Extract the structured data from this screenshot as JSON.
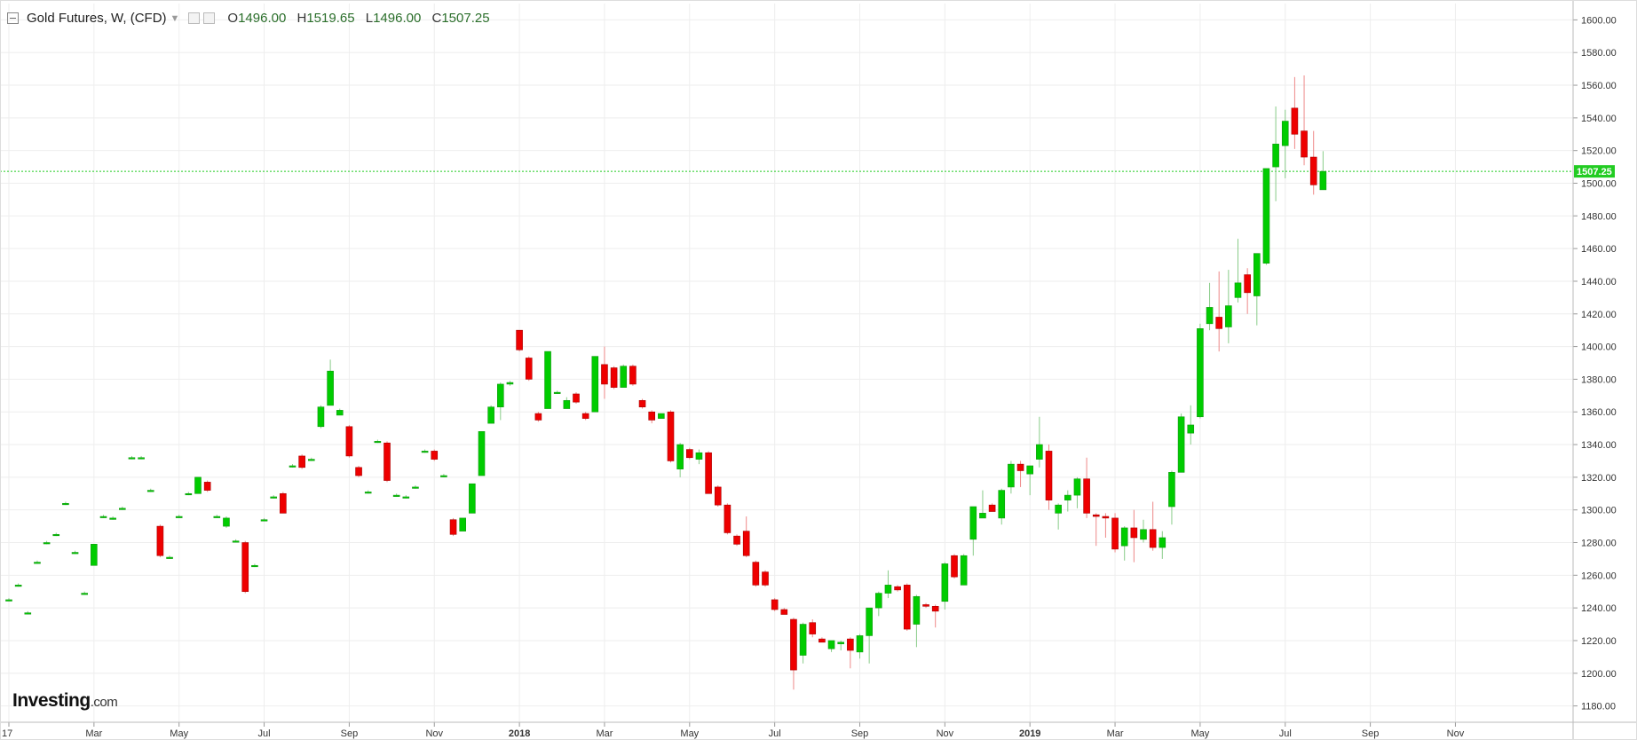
{
  "legend": {
    "title": "Gold Futures, W, (CFD)",
    "o_label": "O",
    "o_value": "1496.00",
    "h_label": "H",
    "h_value": "1519.65",
    "l_label": "L",
    "l_value": "1496.00",
    "c_label": "C",
    "c_value": "1507.25"
  },
  "brand": {
    "name": "Investing",
    "domain": ".com"
  },
  "colors": {
    "up": "#00cc00",
    "down": "#ee0000",
    "grid": "#eeeeee",
    "last_price": "#22cc22",
    "axis_text": "#333333"
  },
  "chart_data": {
    "type": "candlestick",
    "title": "Gold Futures, W, (CFD)",
    "ylim": [
      1170,
      1610
    ],
    "y_ticks": [
      "1180.00",
      "1200.00",
      "1220.00",
      "1240.00",
      "1260.00",
      "1280.00",
      "1300.00",
      "1320.00",
      "1340.00",
      "1360.00",
      "1380.00",
      "1400.00",
      "1420.00",
      "1440.00",
      "1460.00",
      "1480.00",
      "1500.00",
      "1520.00",
      "1540.00",
      "1560.00",
      "1580.00",
      "1600.00"
    ],
    "x_labels": [
      {
        "label": "17",
        "week": 0
      },
      {
        "label": "Mar",
        "week": 9
      },
      {
        "label": "May",
        "week": 18
      },
      {
        "label": "Jul",
        "week": 27
      },
      {
        "label": "Sep",
        "week": 36
      },
      {
        "label": "Nov",
        "week": 45
      },
      {
        "label": "2018",
        "week": 54
      },
      {
        "label": "Mar",
        "week": 63
      },
      {
        "label": "May",
        "week": 72
      },
      {
        "label": "Jul",
        "week": 81
      },
      {
        "label": "Sep",
        "week": 90
      },
      {
        "label": "Nov",
        "week": 99
      },
      {
        "label": "2019",
        "week": 108
      },
      {
        "label": "Mar",
        "week": 117
      },
      {
        "label": "May",
        "week": 126
      },
      {
        "label": "Jul",
        "week": 135
      },
      {
        "label": "Sep",
        "week": 144
      },
      {
        "label": "Nov",
        "week": 153
      }
    ],
    "last_price": 1507.25,
    "last_price_label": "1507.25",
    "candles": [
      {
        "o": 1245,
        "h": 1246,
        "l": 1244,
        "c": 1245
      },
      {
        "o": 1254,
        "h": 1255,
        "l": 1253,
        "c": 1254
      },
      {
        "o": 1237,
        "h": 1238,
        "l": 1236,
        "c": 1237
      },
      {
        "o": 1268,
        "h": 1269,
        "l": 1267,
        "c": 1268
      },
      {
        "o": 1280,
        "h": 1281,
        "l": 1279,
        "c": 1280
      },
      {
        "o": 1285,
        "h": 1286,
        "l": 1284,
        "c": 1285
      },
      {
        "o": 1304,
        "h": 1305,
        "l": 1303,
        "c": 1304
      },
      {
        "o": 1274,
        "h": 1275,
        "l": 1273,
        "c": 1274
      },
      {
        "o": 1249,
        "h": 1250,
        "l": 1248,
        "c": 1249
      },
      {
        "o": 1266,
        "h": 1279,
        "l": 1266,
        "c": 1279
      },
      {
        "o": 1296,
        "h": 1297,
        "l": 1295,
        "c": 1296
      },
      {
        "o": 1295,
        "h": 1296,
        "l": 1294,
        "c": 1295
      },
      {
        "o": 1301,
        "h": 1302,
        "l": 1300,
        "c": 1301
      },
      {
        "o": 1332,
        "h": 1333,
        "l": 1331,
        "c": 1332
      },
      {
        "o": 1332,
        "h": 1333,
        "l": 1331,
        "c": 1332
      },
      {
        "o": 1312,
        "h": 1313,
        "l": 1311,
        "c": 1312
      },
      {
        "o": 1290,
        "h": 1291,
        "l": 1271,
        "c": 1272
      },
      {
        "o": 1271,
        "h": 1272,
        "l": 1270,
        "c": 1271
      },
      {
        "o": 1296,
        "h": 1297,
        "l": 1295,
        "c": 1296
      },
      {
        "o": 1310,
        "h": 1311,
        "l": 1309,
        "c": 1310
      },
      {
        "o": 1310,
        "h": 1320,
        "l": 1310,
        "c": 1320
      },
      {
        "o": 1317,
        "h": 1318,
        "l": 1311,
        "c": 1312
      },
      {
        "o": 1296,
        "h": 1297,
        "l": 1295,
        "c": 1296
      },
      {
        "o": 1290,
        "h": 1296,
        "l": 1289,
        "c": 1295
      },
      {
        "o": 1281,
        "h": 1282,
        "l": 1280,
        "c": 1281
      },
      {
        "o": 1280,
        "h": 1281,
        "l": 1249,
        "c": 1250
      },
      {
        "o": 1266,
        "h": 1267,
        "l": 1265,
        "c": 1266
      },
      {
        "o": 1294,
        "h": 1295,
        "l": 1293,
        "c": 1294
      },
      {
        "o": 1308,
        "h": 1309,
        "l": 1307,
        "c": 1308
      },
      {
        "o": 1310,
        "h": 1311,
        "l": 1298,
        "c": 1298
      },
      {
        "o": 1327,
        "h": 1328,
        "l": 1326,
        "c": 1327
      },
      {
        "o": 1333,
        "h": 1334,
        "l": 1325,
        "c": 1326
      },
      {
        "o": 1331,
        "h": 1332,
        "l": 1330,
        "c": 1331
      },
      {
        "o": 1351,
        "h": 1364,
        "l": 1350,
        "c": 1363
      },
      {
        "o": 1364,
        "h": 1392,
        "l": 1364,
        "c": 1385
      },
      {
        "o": 1358,
        "h": 1362,
        "l": 1358,
        "c": 1361
      },
      {
        "o": 1351,
        "h": 1352,
        "l": 1332,
        "c": 1333
      },
      {
        "o": 1326,
        "h": 1327,
        "l": 1320,
        "c": 1321
      },
      {
        "o": 1311,
        "h": 1312,
        "l": 1310,
        "c": 1311
      },
      {
        "o": 1342,
        "h": 1343,
        "l": 1341,
        "c": 1342
      },
      {
        "o": 1341,
        "h": 1342,
        "l": 1317,
        "c": 1318
      },
      {
        "o": 1309,
        "h": 1310,
        "l": 1308,
        "c": 1309
      },
      {
        "o": 1308,
        "h": 1309,
        "l": 1307,
        "c": 1308
      },
      {
        "o": 1314,
        "h": 1315,
        "l": 1313,
        "c": 1314
      },
      {
        "o": 1336,
        "h": 1337,
        "l": 1335,
        "c": 1336
      },
      {
        "o": 1336,
        "h": 1337,
        "l": 1330,
        "c": 1331
      },
      {
        "o": 1321,
        "h": 1322,
        "l": 1320,
        "c": 1321
      },
      {
        "o": 1294,
        "h": 1295,
        "l": 1284,
        "c": 1285
      },
      {
        "o": 1287,
        "h": 1295,
        "l": 1287,
        "c": 1295
      },
      {
        "o": 1298,
        "h": 1316,
        "l": 1298,
        "c": 1316
      },
      {
        "o": 1321,
        "h": 1348,
        "l": 1321,
        "c": 1348
      },
      {
        "o": 1353,
        "h": 1364,
        "l": 1353,
        "c": 1363
      },
      {
        "o": 1363,
        "h": 1378,
        "l": 1355,
        "c": 1377
      },
      {
        "o": 1377,
        "h": 1379,
        "l": 1376,
        "c": 1378
      },
      {
        "o": 1410,
        "h": 1410,
        "l": 1397,
        "c": 1398
      },
      {
        "o": 1393,
        "h": 1394,
        "l": 1379,
        "c": 1380
      },
      {
        "o": 1359,
        "h": 1360,
        "l": 1354,
        "c": 1355
      },
      {
        "o": 1362,
        "h": 1397,
        "l": 1362,
        "c": 1397
      },
      {
        "o": 1372,
        "h": 1373,
        "l": 1371,
        "c": 1372
      },
      {
        "o": 1362,
        "h": 1369,
        "l": 1362,
        "c": 1367
      },
      {
        "o": 1371,
        "h": 1372,
        "l": 1365,
        "c": 1366
      },
      {
        "o": 1359,
        "h": 1360,
        "l": 1355,
        "c": 1356
      },
      {
        "o": 1360,
        "h": 1394,
        "l": 1360,
        "c": 1394
      },
      {
        "o": 1389,
        "h": 1400,
        "l": 1368,
        "c": 1377
      },
      {
        "o": 1387,
        "h": 1388,
        "l": 1374,
        "c": 1375
      },
      {
        "o": 1375,
        "h": 1389,
        "l": 1375,
        "c": 1388
      },
      {
        "o": 1388,
        "h": 1389,
        "l": 1376,
        "c": 1377
      },
      {
        "o": 1367,
        "h": 1368,
        "l": 1362,
        "c": 1363
      },
      {
        "o": 1360,
        "h": 1361,
        "l": 1353,
        "c": 1355
      },
      {
        "o": 1356,
        "h": 1359,
        "l": 1356,
        "c": 1359
      },
      {
        "o": 1360,
        "h": 1361,
        "l": 1329,
        "c": 1330
      },
      {
        "o": 1325,
        "h": 1341,
        "l": 1320,
        "c": 1340
      },
      {
        "o": 1337,
        "h": 1338,
        "l": 1331,
        "c": 1332
      },
      {
        "o": 1331,
        "h": 1337,
        "l": 1328,
        "c": 1335
      },
      {
        "o": 1335,
        "h": 1336,
        "l": 1310,
        "c": 1310
      },
      {
        "o": 1314,
        "h": 1315,
        "l": 1302,
        "c": 1303
      },
      {
        "o": 1303,
        "h": 1304,
        "l": 1285,
        "c": 1286
      },
      {
        "o": 1284,
        "h": 1285,
        "l": 1278,
        "c": 1279
      },
      {
        "o": 1287,
        "h": 1296,
        "l": 1271,
        "c": 1272
      },
      {
        "o": 1268,
        "h": 1269,
        "l": 1253,
        "c": 1254
      },
      {
        "o": 1262,
        "h": 1263,
        "l": 1253,
        "c": 1254
      },
      {
        "o": 1245,
        "h": 1246,
        "l": 1238,
        "c": 1239
      },
      {
        "o": 1239,
        "h": 1240,
        "l": 1236,
        "c": 1236
      },
      {
        "o": 1233,
        "h": 1234,
        "l": 1190,
        "c": 1202
      },
      {
        "o": 1211,
        "h": 1231,
        "l": 1206,
        "c": 1230
      },
      {
        "o": 1231,
        "h": 1233,
        "l": 1222,
        "c": 1224
      },
      {
        "o": 1221,
        "h": 1222,
        "l": 1219,
        "c": 1219
      },
      {
        "o": 1215,
        "h": 1220,
        "l": 1213,
        "c": 1220
      },
      {
        "o": 1218,
        "h": 1220,
        "l": 1214,
        "c": 1219
      },
      {
        "o": 1221,
        "h": 1222,
        "l": 1203,
        "c": 1214
      },
      {
        "o": 1213,
        "h": 1224,
        "l": 1209,
        "c": 1223
      },
      {
        "o": 1223,
        "h": 1240,
        "l": 1206,
        "c": 1240
      },
      {
        "o": 1240,
        "h": 1250,
        "l": 1235,
        "c": 1249
      },
      {
        "o": 1249,
        "h": 1263,
        "l": 1246,
        "c": 1254
      },
      {
        "o": 1253,
        "h": 1254,
        "l": 1250,
        "c": 1251
      },
      {
        "o": 1254,
        "h": 1255,
        "l": 1226,
        "c": 1227
      },
      {
        "o": 1230,
        "h": 1248,
        "l": 1216,
        "c": 1247
      },
      {
        "o": 1242,
        "h": 1243,
        "l": 1240,
        "c": 1241
      },
      {
        "o": 1241,
        "h": 1242,
        "l": 1228,
        "c": 1238
      },
      {
        "o": 1244,
        "h": 1268,
        "l": 1239,
        "c": 1267
      },
      {
        "o": 1272,
        "h": 1273,
        "l": 1258,
        "c": 1259
      },
      {
        "o": 1254,
        "h": 1273,
        "l": 1254,
        "c": 1272
      },
      {
        "o": 1282,
        "h": 1302,
        "l": 1272,
        "c": 1302
      },
      {
        "o": 1295,
        "h": 1312,
        "l": 1295,
        "c": 1298
      },
      {
        "o": 1303,
        "h": 1304,
        "l": 1299,
        "c": 1299
      },
      {
        "o": 1295,
        "h": 1313,
        "l": 1291,
        "c": 1312
      },
      {
        "o": 1314,
        "h": 1330,
        "l": 1310,
        "c": 1328
      },
      {
        "o": 1328,
        "h": 1330,
        "l": 1314,
        "c": 1324
      },
      {
        "o": 1322,
        "h": 1327,
        "l": 1309,
        "c": 1327
      },
      {
        "o": 1331,
        "h": 1357,
        "l": 1326,
        "c": 1340
      },
      {
        "o": 1336,
        "h": 1340,
        "l": 1300,
        "c": 1306
      },
      {
        "o": 1298,
        "h": 1304,
        "l": 1288,
        "c": 1303
      },
      {
        "o": 1306,
        "h": 1312,
        "l": 1299,
        "c": 1309
      },
      {
        "o": 1309,
        "h": 1320,
        "l": 1301,
        "c": 1319
      },
      {
        "o": 1319,
        "h": 1332,
        "l": 1295,
        "c": 1298
      },
      {
        "o": 1297,
        "h": 1298,
        "l": 1278,
        "c": 1296
      },
      {
        "o": 1296,
        "h": 1298,
        "l": 1283,
        "c": 1295
      },
      {
        "o": 1295,
        "h": 1298,
        "l": 1274,
        "c": 1276
      },
      {
        "o": 1278,
        "h": 1290,
        "l": 1269,
        "c": 1289
      },
      {
        "o": 1289,
        "h": 1300,
        "l": 1268,
        "c": 1283
      },
      {
        "o": 1282,
        "h": 1294,
        "l": 1280,
        "c": 1288
      },
      {
        "o": 1288,
        "h": 1305,
        "l": 1275,
        "c": 1277
      },
      {
        "o": 1277,
        "h": 1287,
        "l": 1270,
        "c": 1283
      },
      {
        "o": 1302,
        "h": 1324,
        "l": 1291,
        "c": 1323
      },
      {
        "o": 1323,
        "h": 1359,
        "l": 1323,
        "c": 1357
      },
      {
        "o": 1347,
        "h": 1364,
        "l": 1340,
        "c": 1352
      },
      {
        "o": 1357,
        "h": 1414,
        "l": 1356,
        "c": 1411
      },
      {
        "o": 1414,
        "h": 1439,
        "l": 1410,
        "c": 1424
      },
      {
        "o": 1418,
        "h": 1446,
        "l": 1397,
        "c": 1411
      },
      {
        "o": 1412,
        "h": 1447,
        "l": 1402,
        "c": 1425
      },
      {
        "o": 1430,
        "h": 1466,
        "l": 1427,
        "c": 1439
      },
      {
        "o": 1444,
        "h": 1448,
        "l": 1420,
        "c": 1433
      },
      {
        "o": 1431,
        "h": 1457,
        "l": 1413,
        "c": 1457
      },
      {
        "o": 1451,
        "h": 1509,
        "l": 1450,
        "c": 1509
      },
      {
        "o": 1510,
        "h": 1547,
        "l": 1489,
        "c": 1524
      },
      {
        "o": 1523,
        "h": 1545,
        "l": 1503,
        "c": 1538
      },
      {
        "o": 1546,
        "h": 1565,
        "l": 1521,
        "c": 1530
      },
      {
        "o": 1532,
        "h": 1566,
        "l": 1511,
        "c": 1516
      },
      {
        "o": 1516,
        "h": 1532,
        "l": 1493,
        "c": 1499
      },
      {
        "o": 1496,
        "h": 1519.65,
        "l": 1496,
        "c": 1507.25
      }
    ]
  }
}
